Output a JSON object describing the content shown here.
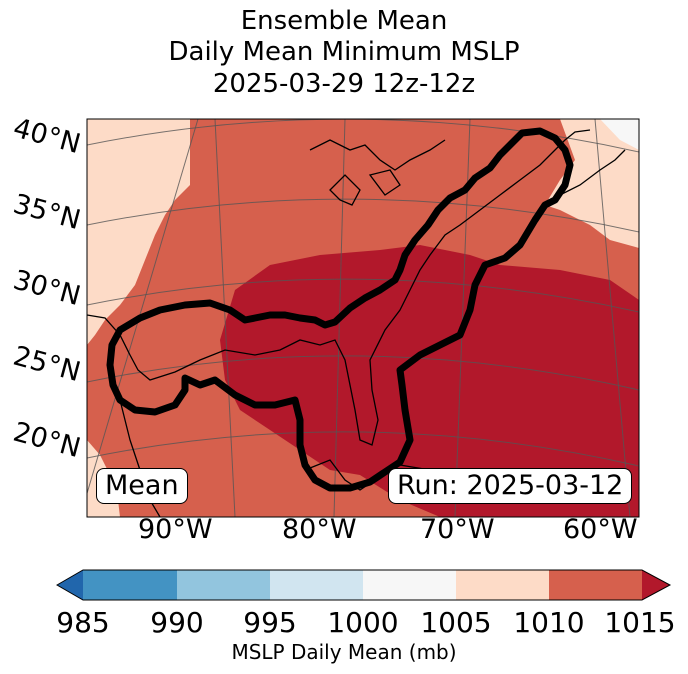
{
  "title": {
    "line1": "Ensemble Mean",
    "line2": "Daily Mean Minimum MSLP",
    "line3": "2025-03-29 12z-12z"
  },
  "lat_labels": [
    "40°N",
    "35°N",
    "30°N",
    "25°N",
    "20°N"
  ],
  "lon_labels": [
    "90°W",
    "80°W",
    "70°W",
    "60°W"
  ],
  "boxes": {
    "left": "Mean",
    "right": "Run: 2025-03-12"
  },
  "colorbar": {
    "ticks": [
      "985",
      "990",
      "995",
      "1000",
      "1005",
      "1010",
      "1015"
    ],
    "label": "MSLP Daily Mean (mb)",
    "colors": [
      "#2166ac",
      "#4393c3",
      "#92c5de",
      "#d1e5f0",
      "#f7f7f7",
      "#fddbc7",
      "#d6604d",
      "#b2182b"
    ]
  },
  "map_colors": {
    "p1005": "#fddbc7",
    "p1010": "#d6604d",
    "p1015": "#b2182b",
    "background": "#f7f7f7"
  }
}
